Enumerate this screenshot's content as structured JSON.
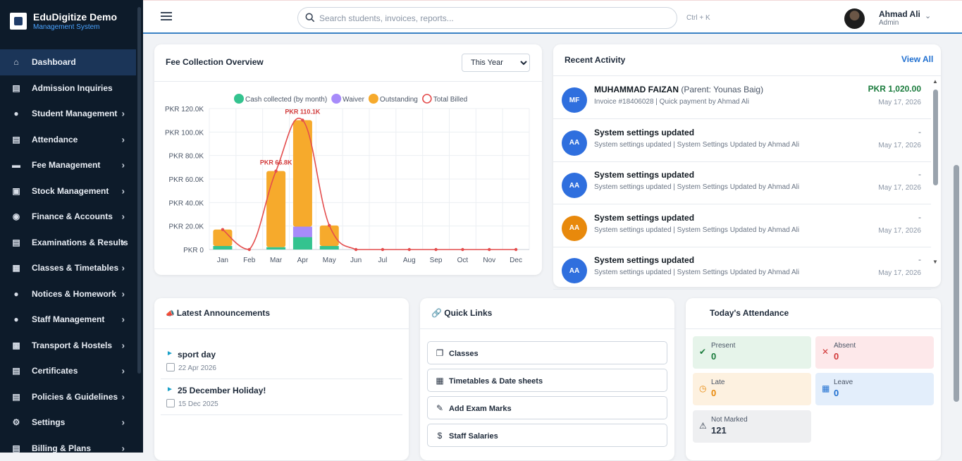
{
  "brand": {
    "title": "EduDigitize Demo",
    "subtitle": "Management System"
  },
  "sidebar": {
    "items": [
      {
        "label": "Dashboard",
        "icon": "home-icon",
        "active": true,
        "has_children": false
      },
      {
        "label": "Admission Inquiries",
        "icon": "clipboard-icon",
        "has_children": false
      },
      {
        "label": "Student Management",
        "icon": "graduate-icon",
        "has_children": true
      },
      {
        "label": "Attendance",
        "icon": "clipboard-check-icon",
        "has_children": true
      },
      {
        "label": "Fee Management",
        "icon": "money-icon",
        "has_children": true
      },
      {
        "label": "Stock Management",
        "icon": "warehouse-icon",
        "has_children": true
      },
      {
        "label": "Finance & Accounts",
        "icon": "coin-icon",
        "has_children": true
      },
      {
        "label": "Examinations & Results",
        "icon": "document-icon",
        "has_children": true
      },
      {
        "label": "Classes & Timetables",
        "icon": "grid-icon",
        "has_children": true
      },
      {
        "label": "Notices & Homework",
        "icon": "bullhorn-icon",
        "has_children": true
      },
      {
        "label": "Staff Management",
        "icon": "users-icon",
        "has_children": true
      },
      {
        "label": "Transport & Hostels",
        "icon": "bus-icon",
        "has_children": true
      },
      {
        "label": "Certificates",
        "icon": "certificate-icon",
        "has_children": true
      },
      {
        "label": "Policies & Guidelines",
        "icon": "policy-icon",
        "has_children": true
      },
      {
        "label": "Settings",
        "icon": "gear-icon",
        "has_children": true
      },
      {
        "label": "Billing & Plans",
        "icon": "billing-icon",
        "has_children": true
      }
    ]
  },
  "topbar": {
    "search_placeholder": "Search students, invoices, reports...",
    "shortcut": "Ctrl + K",
    "user": {
      "name": "Ahmad Ali",
      "role": "Admin"
    }
  },
  "fee_card": {
    "title": "Fee Collection Overview",
    "period_options": [
      "This Year"
    ],
    "period_selected": "This Year"
  },
  "chart_data": {
    "type": "bar",
    "categories": [
      "Jan",
      "Feb",
      "Mar",
      "Apr",
      "May",
      "Jun",
      "Jul",
      "Aug",
      "Sep",
      "Oct",
      "Nov",
      "Dec"
    ],
    "series": [
      {
        "name": "Cash collected (by month)",
        "color": "#34c38f",
        "values": [
          3000,
          0,
          2000,
          10500,
          3000,
          0,
          0,
          0,
          0,
          0,
          0,
          0
        ]
      },
      {
        "name": "Waiver",
        "color": "#a78bfa",
        "values": [
          0,
          0,
          0,
          9000,
          0,
          0,
          0,
          0,
          0,
          0,
          0,
          0
        ]
      },
      {
        "name": "Outstanding",
        "color": "#f6aa2c",
        "values": [
          14000,
          0,
          64800,
          90600,
          17500,
          0,
          0,
          0,
          0,
          0,
          0,
          0
        ]
      },
      {
        "name": "Total Billed",
        "color": "#e44d4d",
        "kind": "line",
        "values": [
          17000,
          0,
          66800,
          110100,
          20500,
          0,
          0,
          0,
          0,
          0,
          0,
          0
        ]
      }
    ],
    "stacked": true,
    "ylim": [
      0,
      120000
    ],
    "yticks": [
      "PKR 0",
      "PKR 20.0K",
      "PKR 40.0K",
      "PKR 60.0K",
      "PKR 80.0K",
      "PKR 100.0K",
      "PKR 120.0K"
    ],
    "annotations": [
      {
        "category": "Mar",
        "text": "PKR 66.8K"
      },
      {
        "category": "Apr",
        "text": "PKR 110.1K"
      }
    ],
    "legend_position": "top",
    "grid": true
  },
  "activity": {
    "title": "Recent Activity",
    "view_all": "View All",
    "items": [
      {
        "initials": "MF",
        "title": "MUHAMMAD FAIZAN",
        "parent": "(Parent: Younas Baig)",
        "sub": "Invoice #18406028 | Quick payment by Ahmad Ali",
        "amount": "PKR 1,020.00",
        "date": "May 17, 2026",
        "color": "#2f6fde"
      },
      {
        "initials": "AA",
        "title": "System settings updated",
        "parent": "",
        "sub": "System settings updated | System Settings Updated by Ahmad Ali",
        "amount": "-",
        "date": "May 17, 2026",
        "color": "#2f6fde"
      },
      {
        "initials": "AA",
        "title": "System settings updated",
        "parent": "",
        "sub": "System settings updated | System Settings Updated by Ahmad Ali",
        "amount": "-",
        "date": "May 17, 2026",
        "color": "#2f6fde"
      },
      {
        "initials": "AA",
        "title": "System settings updated",
        "parent": "",
        "sub": "System settings updated | System Settings Updated by Ahmad Ali",
        "amount": "-",
        "date": "May 17, 2026",
        "color": "#e8890c"
      },
      {
        "initials": "AA",
        "title": "System settings updated",
        "parent": "",
        "sub": "System settings updated | System Settings Updated by Ahmad Ali",
        "amount": "-",
        "date": "May 17, 2026",
        "color": "#2f6fde"
      }
    ]
  },
  "announcements": {
    "title": "Latest Announcements",
    "items": [
      {
        "title": "sport day",
        "date": "22 Apr 2026"
      },
      {
        "title": "25 December Holiday!",
        "date": "15 Dec 2025"
      }
    ]
  },
  "quick_links": {
    "title": "Quick Links",
    "items": [
      {
        "label": "Classes",
        "icon": "classes-icon"
      },
      {
        "label": "Timetables & Date sheets",
        "icon": "calendar-icon"
      },
      {
        "label": "Add Exam Marks",
        "icon": "pencil-icon"
      },
      {
        "label": "Staff Salaries",
        "icon": "dollar-icon"
      }
    ]
  },
  "attendance": {
    "title": "Today's Attendance",
    "stats": [
      {
        "label": "Present",
        "value": "0",
        "bg": "#e6f4ea",
        "color": "#1a7b3c",
        "icon": "check-circle-icon"
      },
      {
        "label": "Absent",
        "value": "0",
        "bg": "#fde8ea",
        "color": "#d23a3a",
        "icon": "x-icon"
      },
      {
        "label": "Late",
        "value": "0",
        "bg": "#fdf1e0",
        "color": "#e8890c",
        "icon": "alarm-icon"
      },
      {
        "label": "Leave",
        "value": "0",
        "bg": "#e3eefb",
        "color": "#1f6fd0",
        "icon": "calendar-icon"
      },
      {
        "label": "Not Marked",
        "value": "121",
        "bg": "#eeeff1",
        "color": "#2a3545",
        "icon": "warning-icon"
      }
    ]
  }
}
